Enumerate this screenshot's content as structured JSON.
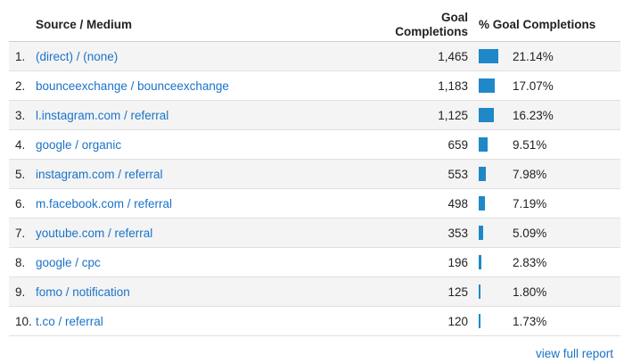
{
  "table": {
    "headers": {
      "source_medium": "Source / Medium",
      "goal_completions_line1": "Goal",
      "goal_completions_line2": "Completions",
      "pct_goal_completions": "% Goal Completions"
    },
    "rows": [
      {
        "rank": "1.",
        "source": "(direct) / (none)",
        "goal": "1,465",
        "pct_label": "21.14%",
        "pct": 21.14
      },
      {
        "rank": "2.",
        "source": "bounceexchange / bounceexchange",
        "goal": "1,183",
        "pct_label": "17.07%",
        "pct": 17.07
      },
      {
        "rank": "3.",
        "source": "l.instagram.com / referral",
        "goal": "1,125",
        "pct_label": "16.23%",
        "pct": 16.23
      },
      {
        "rank": "4.",
        "source": "google / organic",
        "goal": "659",
        "pct_label": "9.51%",
        "pct": 9.51
      },
      {
        "rank": "5.",
        "source": "instagram.com / referral",
        "goal": "553",
        "pct_label": "7.98%",
        "pct": 7.98
      },
      {
        "rank": "6.",
        "source": "m.facebook.com / referral",
        "goal": "498",
        "pct_label": "7.19%",
        "pct": 7.19
      },
      {
        "rank": "7.",
        "source": "youtube.com / referral",
        "goal": "353",
        "pct_label": "5.09%",
        "pct": 5.09
      },
      {
        "rank": "8.",
        "source": "google / cpc",
        "goal": "196",
        "pct_label": "2.83%",
        "pct": 2.83
      },
      {
        "rank": "9.",
        "source": "fomo / notification",
        "goal": "125",
        "pct_label": "1.80%",
        "pct": 1.8
      },
      {
        "rank": "10.",
        "source": "t.co / referral",
        "goal": "120",
        "pct_label": "1.73%",
        "pct": 1.73
      }
    ]
  },
  "footer": {
    "link_label": "view full report"
  },
  "colors": {
    "link": "#1a73c8",
    "bar": "#1e88c8"
  }
}
